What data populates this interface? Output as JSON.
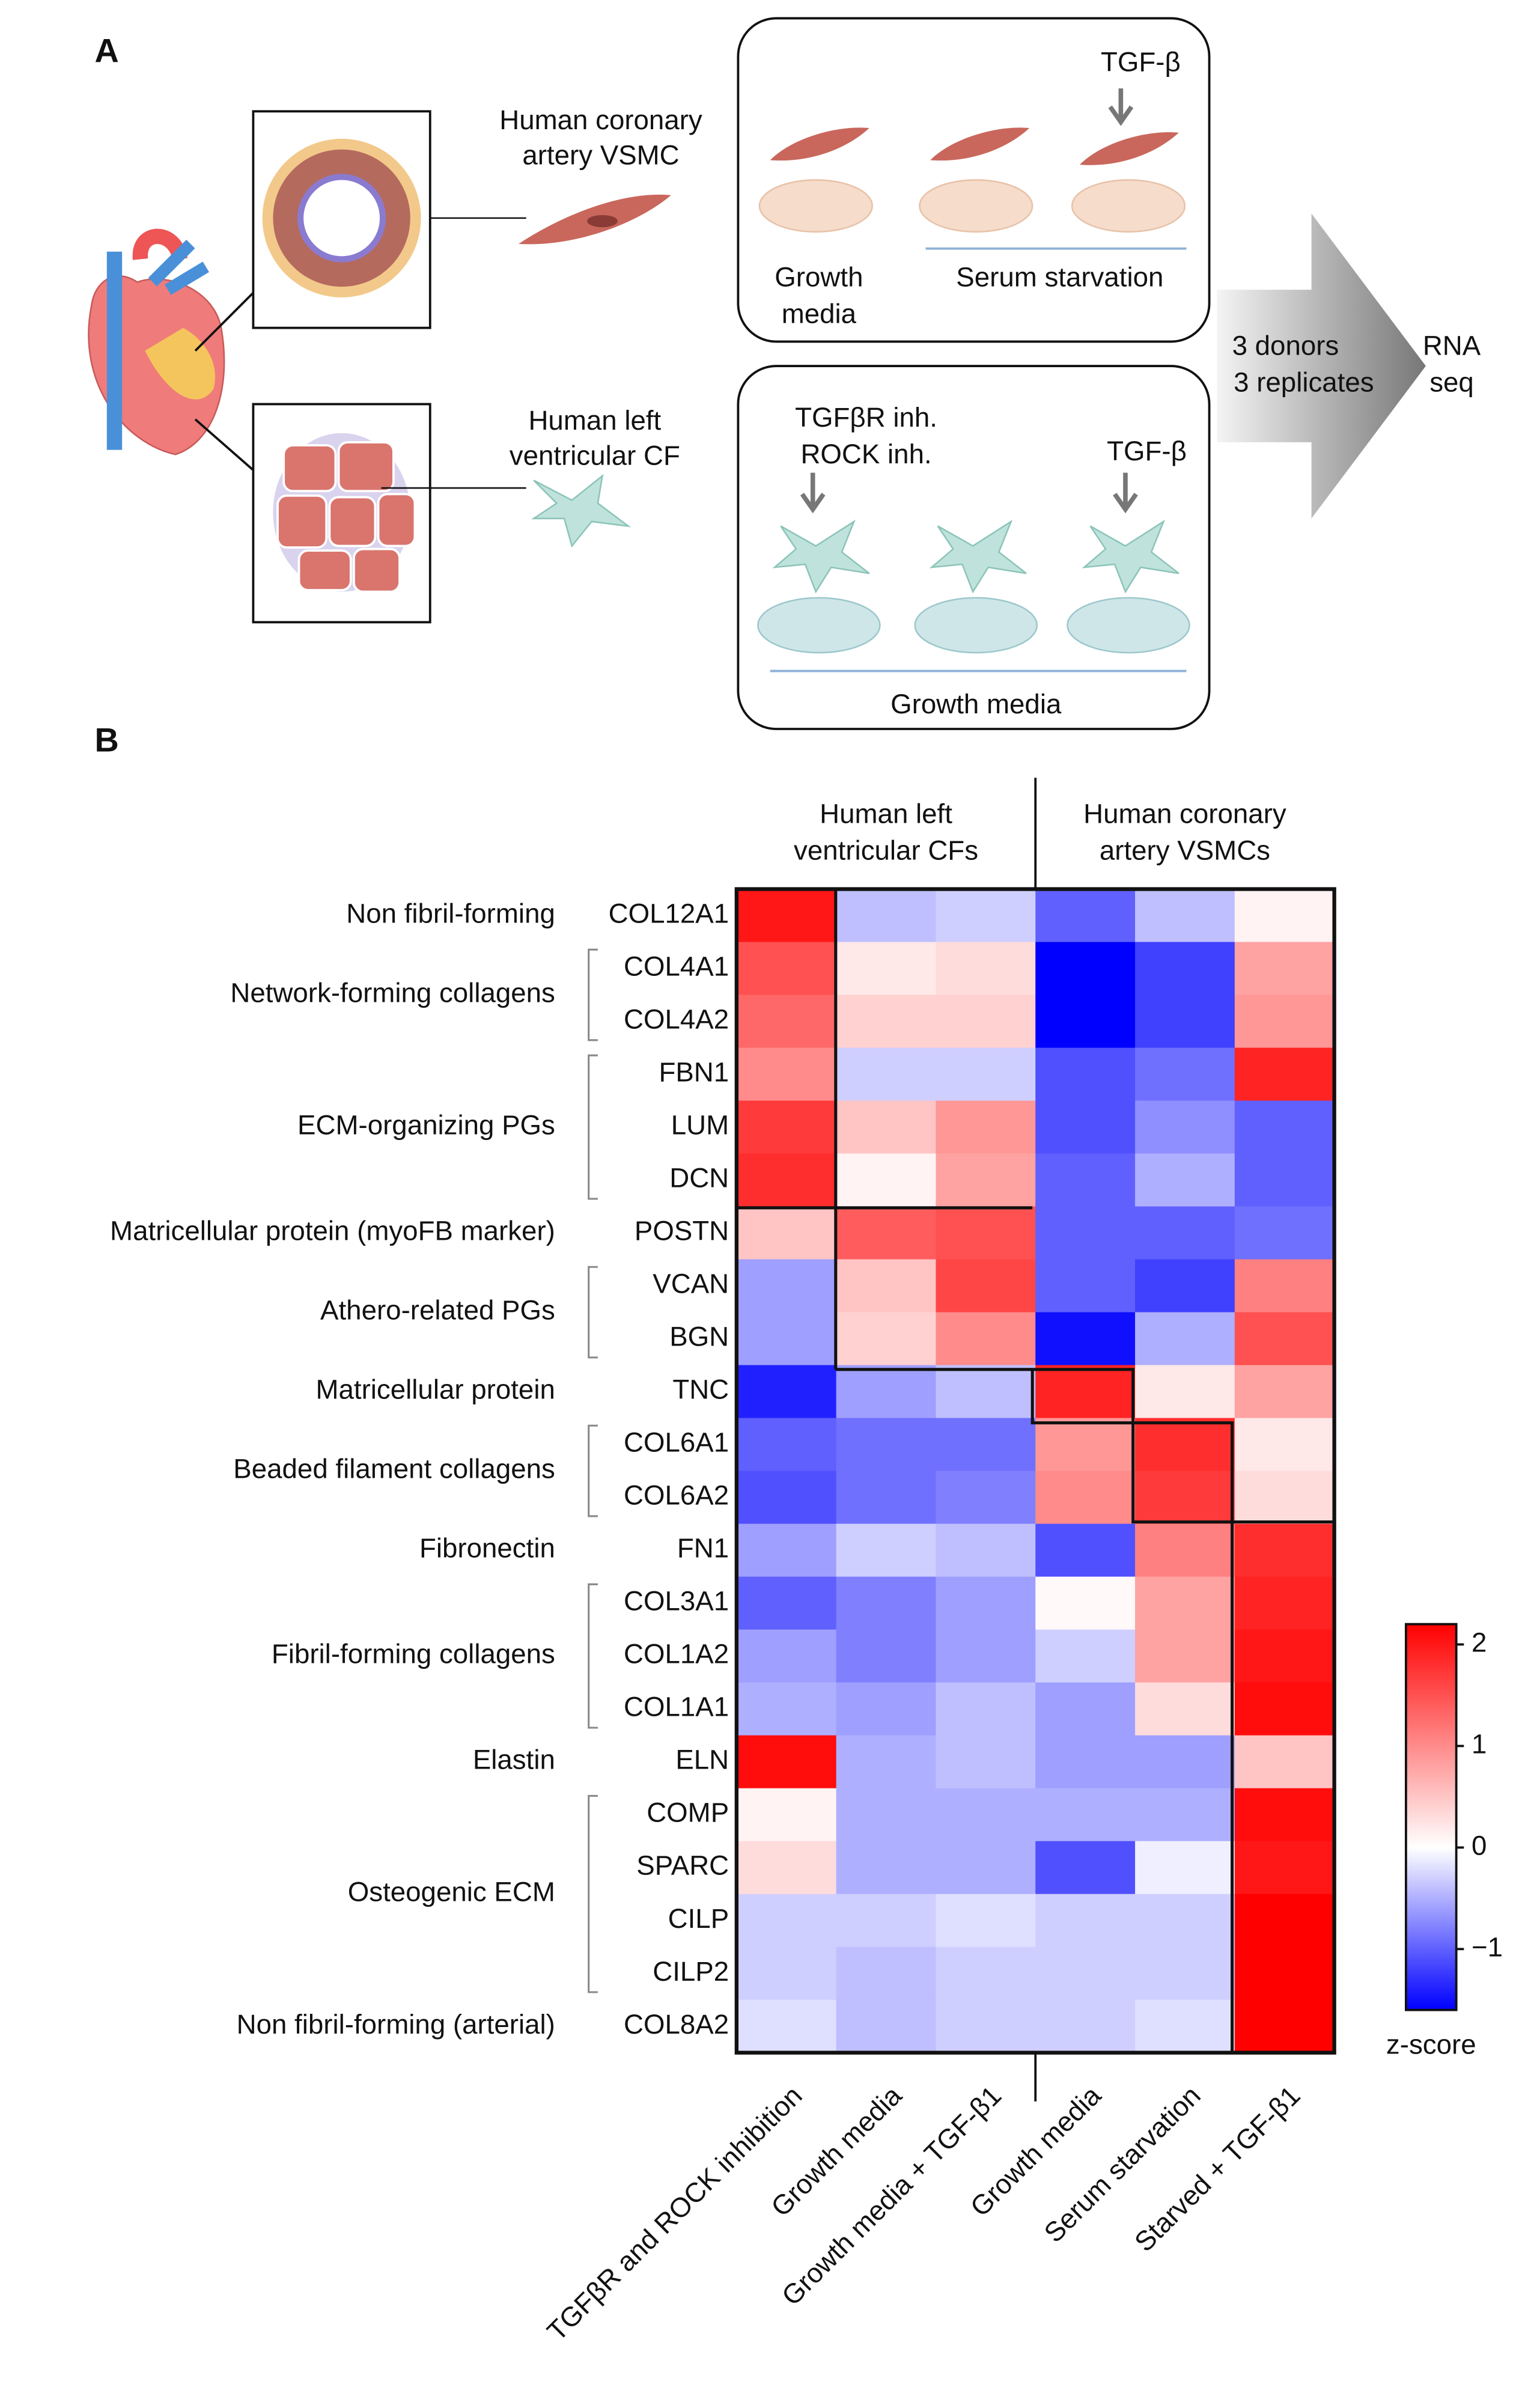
{
  "panel_a": {
    "label": "A",
    "vsmc_label": [
      "Human coronary",
      "artery VSMC"
    ],
    "cf_label": [
      "Human left",
      "ventricular CF"
    ],
    "vsmc_culture": {
      "treatment": "TGF-β",
      "growth": [
        "Growth",
        "media"
      ],
      "starvation": "Serum starvation"
    },
    "cf_culture": {
      "inhibitors": [
        "TGFβR inh.",
        "ROCK inh."
      ],
      "treatment": "TGF-β",
      "condition": "Growth media"
    },
    "arrow_text": [
      "3 donors",
      "3 replicates"
    ],
    "output": [
      "RNA",
      "seq"
    ]
  },
  "panel_b_label": "B",
  "chart_data": {
    "type": "heatmap",
    "column_groups": [
      {
        "label": [
          "Human left",
          "ventricular CFs"
        ],
        "columns": [
          "TGFβR and ROCK inhibition",
          "Growth media",
          "Growth media + TGF-β1"
        ]
      },
      {
        "label": [
          "Human coronary",
          "artery VSMCs"
        ],
        "columns": [
          "Growth media",
          "Serum starvation",
          "Starved + TGF-β1"
        ]
      }
    ],
    "groups": [
      {
        "label": "Non fibril-forming",
        "rows": [
          {
            "gene": "COL12A1",
            "values": [
              2.0,
              -0.4,
              -0.3,
              -1.0,
              -0.4,
              0.1
            ]
          }
        ]
      },
      {
        "label": "Network-forming collagens",
        "rows": [
          {
            "gene": "COL4A1",
            "values": [
              1.5,
              0.2,
              0.3,
              -1.6,
              -1.2,
              0.8
            ]
          },
          {
            "gene": "COL4A2",
            "values": [
              1.3,
              0.4,
              0.4,
              -1.6,
              -1.2,
              0.9
            ]
          }
        ]
      },
      {
        "label": "ECM-organizing PGs",
        "rows": [
          {
            "gene": "FBN1",
            "values": [
              1.0,
              -0.3,
              -0.3,
              -1.1,
              -0.9,
              1.9
            ]
          },
          {
            "gene": "LUM",
            "values": [
              1.7,
              0.5,
              0.9,
              -1.1,
              -0.7,
              -1.0
            ]
          },
          {
            "gene": "DCN",
            "values": [
              1.8,
              0.1,
              0.8,
              -1.0,
              -0.5,
              -1.0
            ]
          }
        ]
      },
      {
        "label": "Matricellular protein (myoFB marker)",
        "rows": [
          {
            "gene": "POSTN",
            "values": [
              0.5,
              1.4,
              1.5,
              -1.0,
              -1.0,
              -0.9
            ]
          }
        ]
      },
      {
        "label": "Athero-related PGs",
        "rows": [
          {
            "gene": "VCAN",
            "values": [
              -0.6,
              0.5,
              1.6,
              -1.0,
              -1.2,
              1.1
            ]
          },
          {
            "gene": "BGN",
            "values": [
              -0.6,
              0.4,
              1.0,
              -1.5,
              -0.5,
              1.5
            ]
          }
        ]
      },
      {
        "label": "Matricellular protein",
        "rows": [
          {
            "gene": "TNC",
            "values": [
              -1.4,
              -0.6,
              -0.4,
              1.9,
              0.2,
              0.8
            ]
          }
        ]
      },
      {
        "label": "Beaded filament collagens",
        "rows": [
          {
            "gene": "COL6A1",
            "values": [
              -1.0,
              -0.9,
              -0.9,
              0.9,
              1.8,
              0.2
            ]
          },
          {
            "gene": "COL6A2",
            "values": [
              -1.1,
              -0.9,
              -0.8,
              1.0,
              1.7,
              0.3
            ]
          }
        ]
      },
      {
        "label": "Fibronectin",
        "rows": [
          {
            "gene": "FN1",
            "values": [
              -0.6,
              -0.3,
              -0.4,
              -1.1,
              1.1,
              1.8
            ]
          }
        ]
      },
      {
        "label": "Fibril-forming collagens",
        "rows": [
          {
            "gene": "COL3A1",
            "values": [
              -1.0,
              -0.8,
              -0.6,
              0.05,
              0.8,
              1.9
            ]
          },
          {
            "gene": "COL1A2",
            "values": [
              -0.6,
              -0.8,
              -0.6,
              -0.3,
              0.8,
              2.0
            ]
          },
          {
            "gene": "COL1A1",
            "values": [
              -0.5,
              -0.6,
              -0.4,
              -0.6,
              0.3,
              2.1
            ]
          }
        ]
      },
      {
        "label": "Elastin",
        "rows": [
          {
            "gene": "ELN",
            "values": [
              2.1,
              -0.5,
              -0.4,
              -0.6,
              -0.6,
              0.5
            ]
          }
        ]
      },
      {
        "label": "Osteogenic ECM",
        "rows": [
          {
            "gene": "COMP",
            "values": [
              0.1,
              -0.5,
              -0.5,
              -0.5,
              -0.5,
              2.1
            ]
          },
          {
            "gene": "SPARC",
            "values": [
              0.3,
              -0.5,
              -0.5,
              -1.1,
              -0.1,
              2.0
            ]
          },
          {
            "gene": "CILP",
            "values": [
              -0.3,
              -0.3,
              -0.2,
              -0.3,
              -0.3,
              2.2
            ]
          },
          {
            "gene": "CILP2",
            "values": [
              -0.3,
              -0.4,
              -0.3,
              -0.3,
              -0.3,
              2.2
            ]
          }
        ]
      },
      {
        "label": "Non fibril-forming (arterial)",
        "rows": [
          {
            "gene": "COL8A2",
            "values": [
              -0.2,
              -0.4,
              -0.3,
              -0.3,
              -0.2,
              2.2
            ]
          }
        ]
      }
    ],
    "zlim": [
      -1.6,
      2.2
    ],
    "zticks": [
      {
        "value": -1,
        "label": "−1"
      },
      0,
      1,
      2
    ],
    "colorbar_label": "z-score",
    "colors": {
      "low": "#0000ff",
      "mid": "#ffffff",
      "high": "#ff0000"
    }
  }
}
